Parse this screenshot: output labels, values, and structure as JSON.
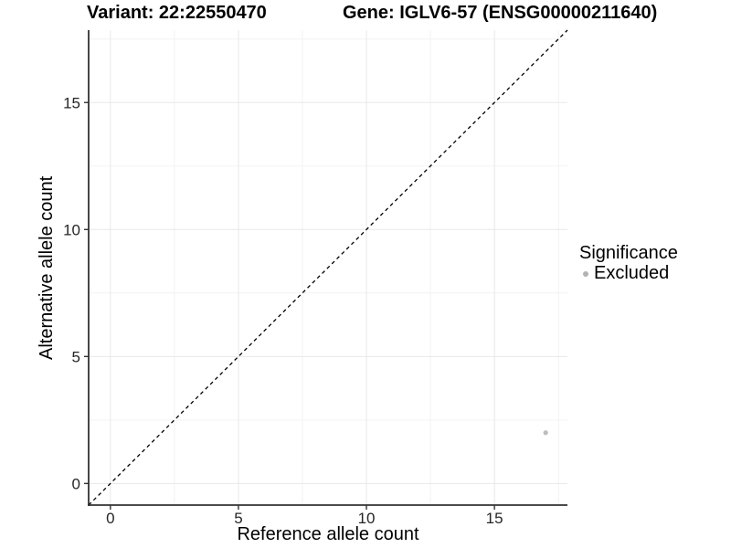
{
  "chart_data": {
    "type": "scatter",
    "title_left": "Variant: 22:22550470",
    "title_right": "Gene: IGLV6-57 (ENSG00000211640)",
    "xlabel": "Reference allele count",
    "ylabel": "Alternative allele count",
    "xlim": [
      -0.85,
      17.85
    ],
    "ylim": [
      -0.85,
      17.85
    ],
    "xticks": [
      0,
      5,
      10,
      15
    ],
    "yticks": [
      0,
      5,
      10,
      15
    ],
    "minor_ticks": [
      2.5,
      7.5,
      12.5,
      17.5
    ],
    "grid": true,
    "points": [
      {
        "x": 17,
        "y": 2,
        "series": "Excluded"
      }
    ],
    "reference_line": {
      "slope": 1,
      "intercept": 0,
      "style": "dashed",
      "color": "#000000"
    },
    "legend": {
      "title": "Significance",
      "position": "right",
      "items": [
        {
          "label": "Excluded",
          "color": "#b3b3b3"
        }
      ]
    },
    "colors": {
      "point": "#bdbdbd",
      "grid_major": "#e8e8e8",
      "grid_minor": "#f3f3f3",
      "axis": "#333333",
      "tick_text": "#262626",
      "background": "#ffffff"
    }
  }
}
